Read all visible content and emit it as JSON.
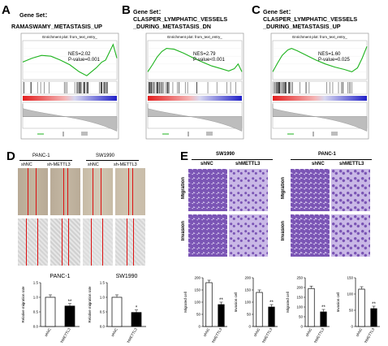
{
  "panels": {
    "A": {
      "letter": "A",
      "gene_set_label": "Gene Set：",
      "gene_set_name": "RAMASWAMY_METASTASIS_UP",
      "plot_title": "Enrichment plot: from_text_entry_",
      "nes": "NES=2.02",
      "pvalue": "P-value=0.001"
    },
    "B": {
      "letter": "B",
      "gene_set_label": "Gene Set：",
      "gene_set_name_line1": "CLASPER_LYMPHATIC_VESSELS",
      "gene_set_name_line2": "_DURING_METASTASIS_DN",
      "plot_title": "Enrichment plot: from_text_entry_",
      "nes": "NES=2.79",
      "pvalue": "P-value<0.001"
    },
    "C": {
      "letter": "C",
      "gene_set_label": "Gene Set：",
      "gene_set_name_line1": "CLASPER_LYMPHATIC_VESSELS",
      "gene_set_name_line2": "_DURING_METASTASIS_UP",
      "plot_title": "Enrichment plot: from_text_entry_",
      "nes": "NES=1.60",
      "pvalue": "P-value=0.025"
    },
    "D": {
      "letter": "D",
      "cell_lines": [
        "PANC-1",
        "SW1990"
      ],
      "groups": [
        "shNC",
        "sh-METTL3"
      ],
      "bar_groups": [
        "shNC",
        "shMETTL3"
      ],
      "ylabel": "Relative migration rate",
      "significance": [
        "**",
        "*"
      ]
    },
    "E": {
      "letter": "E",
      "cell_lines": [
        "SW1990",
        "PANC-1"
      ],
      "groups": [
        "shNC",
        "shMETTL3"
      ],
      "rows": [
        "Migration",
        "Invasion"
      ],
      "ylabels": [
        "Migrated cell",
        "Invasion cell",
        "Migrated cell",
        "Invasion cell"
      ],
      "significance": [
        "**",
        "**",
        "**",
        "**"
      ]
    }
  },
  "chart_data": [
    {
      "type": "bar",
      "title": "PANC-1",
      "categories": [
        "shNC",
        "shMETTL3"
      ],
      "values": [
        1.0,
        0.7
      ],
      "ylabel": "Relative migration rate",
      "ylim": [
        0,
        1.5
      ],
      "yticks": [
        "0.0",
        "0.5",
        "1.0",
        "1.5"
      ],
      "significance": "**"
    },
    {
      "type": "bar",
      "title": "SW1990",
      "categories": [
        "shNC",
        "shMETTL3"
      ],
      "values": [
        1.0,
        0.48
      ],
      "ylabel": "Relative migration rate",
      "ylim": [
        0,
        1.5
      ],
      "yticks": [
        "0.0",
        "0.5",
        "1.0",
        "1.5"
      ],
      "significance": "*"
    },
    {
      "type": "bar",
      "title": "",
      "categories": [
        "shNC",
        "shMETTL3"
      ],
      "values": [
        180,
        90
      ],
      "ylabel": "Migrated cell",
      "ylim": [
        0,
        200
      ],
      "yticks": [
        "0",
        "50",
        "100",
        "150",
        "200"
      ],
      "significance": "**"
    },
    {
      "type": "bar",
      "title": "",
      "categories": [
        "shNC",
        "shMETTL3"
      ],
      "values": [
        140,
        80
      ],
      "ylabel": "Invasion cell",
      "ylim": [
        0,
        200
      ],
      "yticks": [
        "0",
        "50",
        "100",
        "150",
        "200"
      ],
      "significance": "**"
    },
    {
      "type": "bar",
      "title": "",
      "categories": [
        "shNC",
        "shMETTL3"
      ],
      "values": [
        195,
        75
      ],
      "ylabel": "Migrated cell",
      "ylim": [
        0,
        250
      ],
      "yticks": [
        "0",
        "50",
        "100",
        "150",
        "200",
        "250"
      ],
      "significance": "**"
    },
    {
      "type": "bar",
      "title": "",
      "categories": [
        "shNC",
        "shMETTL3"
      ],
      "values": [
        115,
        55
      ],
      "ylabel": "Invasion cell",
      "ylim": [
        0,
        150
      ],
      "yticks": [
        "0",
        "50",
        "100",
        "150"
      ],
      "significance": "**"
    }
  ]
}
